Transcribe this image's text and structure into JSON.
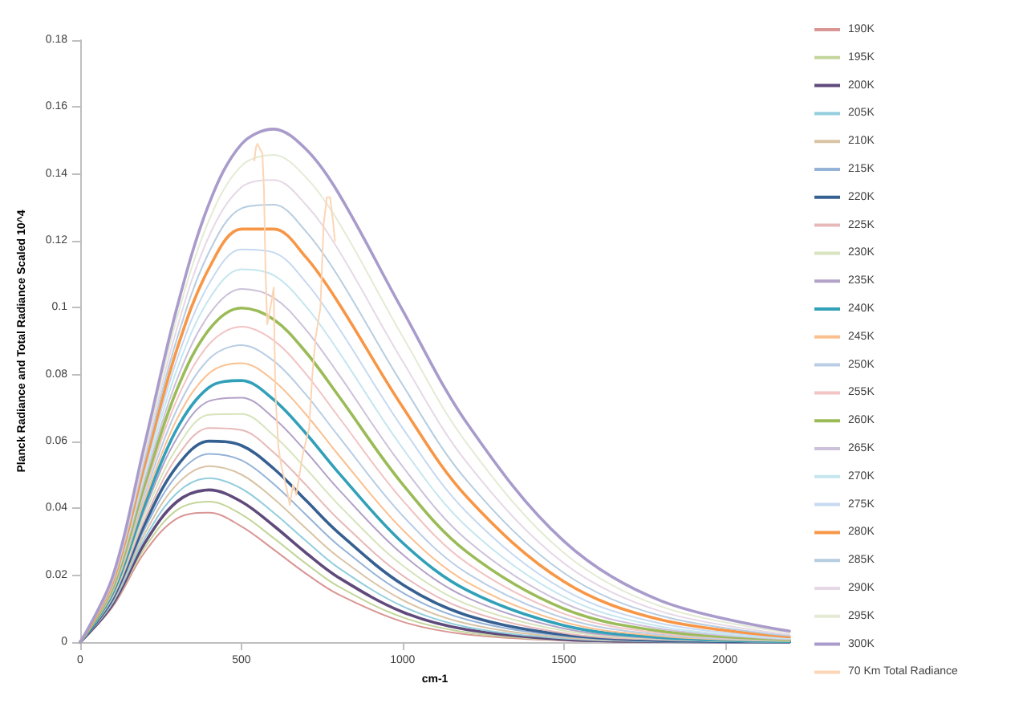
{
  "chart_data": {
    "type": "line",
    "xlabel": "cm-1",
    "ylabel": "Planck Radiance and Total Radiance Scaled 10^4",
    "x": [
      0,
      100,
      200,
      300,
      400,
      500,
      600,
      700,
      800,
      1000,
      1200,
      1500,
      1800,
      2200
    ],
    "xlim": [
      0,
      2200
    ],
    "xticks": [
      0,
      500,
      1000,
      1500,
      2000
    ],
    "ylim": [
      0,
      0.18
    ],
    "yticks": [
      0,
      0.02,
      0.04,
      0.06,
      0.08,
      0.1,
      0.12,
      0.14,
      0.16,
      0.18
    ],
    "grid": false,
    "legend": "right",
    "marker": "none",
    "line_style": "solid",
    "series": [
      {
        "name": "190K",
        "color": "#d99694",
        "values": [
          0,
          0.0105,
          0.0269,
          0.037,
          0.0387,
          0.0346,
          0.0277,
          0.0205,
          0.0143,
          0.0061,
          0.0023,
          0.0005,
          0.0001,
          0.0
        ]
      },
      {
        "name": "195K",
        "color": "#c3d69b",
        "values": [
          0,
          0.0109,
          0.0282,
          0.0395,
          0.042,
          0.0382,
          0.0311,
          0.0235,
          0.0167,
          0.0074,
          0.0029,
          0.0006,
          0.0001,
          0.0
        ]
      },
      {
        "name": "200K",
        "color": "#604a7b",
        "values": [
          0,
          0.0113,
          0.0296,
          0.042,
          0.0455,
          0.042,
          0.0348,
          0.0267,
          0.0194,
          0.009,
          0.0037,
          0.0008,
          0.0002,
          0.0
        ]
      },
      {
        "name": "205K",
        "color": "#93cddd",
        "values": [
          0,
          0.0117,
          0.031,
          0.0446,
          0.049,
          0.0459,
          0.0387,
          0.0303,
          0.0223,
          0.0107,
          0.0045,
          0.0011,
          0.0002,
          0.0
        ]
      },
      {
        "name": "210K",
        "color": "#d9c3a5",
        "values": [
          0,
          0.0121,
          0.0324,
          0.0472,
          0.0526,
          0.0501,
          0.0429,
          0.034,
          0.0255,
          0.0126,
          0.0055,
          0.0014,
          0.0003,
          0.0
        ]
      },
      {
        "name": "215K",
        "color": "#95b3d7",
        "values": [
          0,
          0.0125,
          0.0339,
          0.0499,
          0.0563,
          0.0544,
          0.0473,
          0.0381,
          0.029,
          0.0148,
          0.0067,
          0.0018,
          0.0004,
          0.0001
        ]
      },
      {
        "name": "220K",
        "color": "#376092",
        "values": [
          0,
          0.0129,
          0.0353,
          0.0526,
          0.0601,
          0.0588,
          0.0519,
          0.0424,
          0.0328,
          0.0172,
          0.008,
          0.0022,
          0.0005,
          0.0001
        ]
      },
      {
        "name": "225K",
        "color": "#e6b9b8",
        "values": [
          0,
          0.0133,
          0.0367,
          0.0554,
          0.064,
          0.0634,
          0.0567,
          0.047,
          0.0368,
          0.0199,
          0.0096,
          0.0027,
          0.0007,
          0.0001
        ]
      },
      {
        "name": "230K",
        "color": "#d7e4bd",
        "values": [
          0,
          0.0137,
          0.0382,
          0.0581,
          0.068,
          0.0682,
          0.0618,
          0.0519,
          0.0412,
          0.0229,
          0.0113,
          0.0034,
          0.0009,
          0.0001
        ]
      },
      {
        "name": "235K",
        "color": "#b3a2c7",
        "values": [
          0,
          0.0141,
          0.0397,
          0.061,
          0.0721,
          0.0731,
          0.067,
          0.057,
          0.0458,
          0.0262,
          0.0133,
          0.0041,
          0.0011,
          0.0002
        ]
      },
      {
        "name": "240K",
        "color": "#31a0b8",
        "values": [
          0,
          0.0145,
          0.0411,
          0.0638,
          0.0762,
          0.0782,
          0.0725,
          0.0624,
          0.0508,
          0.0297,
          0.0155,
          0.005,
          0.0014,
          0.0002
        ]
      },
      {
        "name": "245K",
        "color": "#fac090",
        "values": [
          0,
          0.0149,
          0.0426,
          0.0667,
          0.0804,
          0.0834,
          0.0782,
          0.0681,
          0.0561,
          0.0336,
          0.0179,
          0.006,
          0.0018,
          0.0003
        ]
      },
      {
        "name": "250K",
        "color": "#b9cde5",
        "values": [
          0,
          0.0153,
          0.0441,
          0.0696,
          0.0847,
          0.0888,
          0.0841,
          0.074,
          0.0617,
          0.0378,
          0.0206,
          0.0072,
          0.0022,
          0.0004
        ]
      },
      {
        "name": "255K",
        "color": "#f2c4c4",
        "values": [
          0,
          0.0157,
          0.0456,
          0.0725,
          0.0891,
          0.0943,
          0.0902,
          0.0802,
          0.0675,
          0.0424,
          0.0236,
          0.0085,
          0.0027,
          0.0005
        ]
      },
      {
        "name": "260K",
        "color": "#9bbb59",
        "values": [
          0,
          0.0161,
          0.0471,
          0.0755,
          0.0935,
          0.0999,
          0.0965,
          0.0867,
          0.0738,
          0.0472,
          0.0269,
          0.01,
          0.0033,
          0.0007
        ]
      },
      {
        "name": "265K",
        "color": "#ccc1da",
        "values": [
          0,
          0.0165,
          0.0486,
          0.0785,
          0.098,
          0.1056,
          0.103,
          0.0934,
          0.0803,
          0.0525,
          0.0305,
          0.0117,
          0.004,
          0.0008
        ]
      },
      {
        "name": "270K",
        "color": "#c5e6ef",
        "values": [
          0,
          0.0169,
          0.0501,
          0.0815,
          0.1026,
          0.1115,
          0.1097,
          0.1004,
          0.0871,
          0.058,
          0.0344,
          0.0136,
          0.0047,
          0.001
        ]
      },
      {
        "name": "275K",
        "color": "#c6d9f1",
        "values": [
          0,
          0.0173,
          0.0516,
          0.0845,
          0.1072,
          0.1174,
          0.1165,
          0.1076,
          0.0942,
          0.064,
          0.0387,
          0.0157,
          0.0056,
          0.0013
        ]
      },
      {
        "name": "280K",
        "color": "#f79646",
        "values": [
          0,
          0.0177,
          0.0531,
          0.0876,
          0.1119,
          0.1235,
          0.1235,
          0.1151,
          0.1016,
          0.0703,
          0.0433,
          0.0181,
          0.0067,
          0.0016
        ]
      },
      {
        "name": "285K",
        "color": "#b7cde0",
        "values": [
          0,
          0.0181,
          0.0546,
          0.0907,
          0.1167,
          0.1297,
          0.1308,
          0.1228,
          0.1094,
          0.0769,
          0.0482,
          0.0207,
          0.0079,
          0.0019
        ]
      },
      {
        "name": "290K",
        "color": "#e6d8e6",
        "values": [
          0,
          0.0185,
          0.0561,
          0.0938,
          0.1215,
          0.136,
          0.1382,
          0.1308,
          0.1174,
          0.084,
          0.0536,
          0.0236,
          0.0092,
          0.0023
        ]
      },
      {
        "name": "295K",
        "color": "#e4ebd4",
        "values": [
          0,
          0.0189,
          0.0577,
          0.0969,
          0.1263,
          0.1424,
          0.1457,
          0.139,
          0.1258,
          0.0914,
          0.0593,
          0.0267,
          0.0107,
          0.0028
        ]
      },
      {
        "name": "300K",
        "color": "#a99bcb",
        "values": [
          0,
          0.0194,
          0.0592,
          0.1,
          0.1312,
          0.1489,
          0.1534,
          0.1474,
          0.1344,
          0.0992,
          0.0654,
          0.0302,
          0.0124,
          0.0033
        ]
      },
      {
        "name": "70 Km Total Radiance",
        "color": "#fcd5b5",
        "x": [
          540,
          545,
          550,
          555,
          560,
          565,
          570,
          575,
          580,
          590,
          600,
          605,
          615,
          625,
          640,
          650,
          660,
          670,
          690,
          710,
          720,
          730,
          745,
          755,
          765,
          775,
          785,
          790
        ],
        "values": [
          0.144,
          0.148,
          0.149,
          0.148,
          0.147,
          0.146,
          0.135,
          0.11,
          0.095,
          0.1,
          0.106,
          0.075,
          0.058,
          0.052,
          0.046,
          0.041,
          0.047,
          0.044,
          0.056,
          0.064,
          0.08,
          0.091,
          0.1,
          0.125,
          0.133,
          0.133,
          0.125,
          0.12
        ]
      }
    ]
  }
}
